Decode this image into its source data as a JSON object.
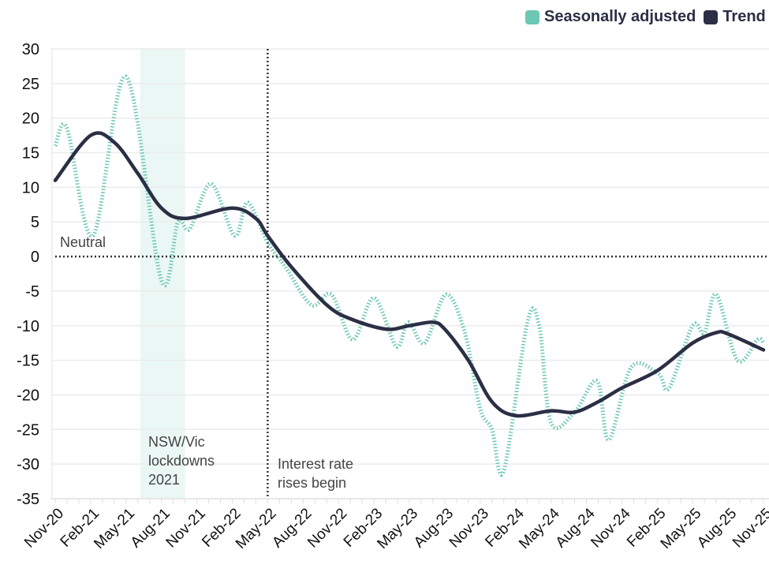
{
  "chart_data": {
    "type": "line",
    "title": "",
    "xlabel": "",
    "ylabel": "",
    "ylim": [
      -35,
      30
    ],
    "yticks": [
      30,
      25,
      20,
      15,
      10,
      5,
      0,
      -5,
      -10,
      -15,
      -20,
      -25,
      -30,
      -35
    ],
    "x_unit": "month index from Nov-20",
    "xlim": [
      0,
      60
    ],
    "xtick_labels": [
      "Nov-20",
      "Feb-21",
      "May-21",
      "Aug-21",
      "Nov-21",
      "Feb-22",
      "May-22",
      "Aug-22",
      "Nov-22",
      "Feb-23",
      "May-23",
      "Aug-23",
      "Nov-23",
      "Feb-24",
      "May-24",
      "Aug-24",
      "Nov-24",
      "Feb-25",
      "May-25",
      "Aug-25",
      "Nov-25"
    ],
    "grid": true,
    "legend": {
      "placement": "top-right",
      "entries": [
        "Seasonally adjusted",
        "Trend"
      ]
    },
    "colors": {
      "seasonally_adjusted": "#6cc7b4",
      "trend": "#2b2f45",
      "band": "#eaf7f4",
      "reference": "#333333"
    },
    "series": [
      {
        "name": "Seasonally adjusted",
        "style": "dotted",
        "points": [
          [
            0,
            16
          ],
          [
            1,
            18.5
          ],
          [
            3.2,
            3
          ],
          [
            6,
            26
          ],
          [
            9,
            -3.5
          ],
          [
            10.4,
            5
          ],
          [
            11.4,
            4
          ],
          [
            13.2,
            10.5
          ],
          [
            15.2,
            3
          ],
          [
            16.3,
            7.8
          ],
          [
            18,
            2
          ],
          [
            19.5,
            -1.5
          ],
          [
            21.7,
            -7
          ],
          [
            23.4,
            -5.5
          ],
          [
            25.2,
            -12
          ],
          [
            27,
            -6
          ],
          [
            28.9,
            -13
          ],
          [
            29.9,
            -9.5
          ],
          [
            31.3,
            -12.5
          ],
          [
            33.1,
            -5.5
          ],
          [
            34.7,
            -11
          ],
          [
            36,
            -22
          ],
          [
            37,
            -25
          ],
          [
            38,
            -31
          ],
          [
            40,
            -9.5
          ],
          [
            41,
            -10
          ],
          [
            42,
            -24
          ],
          [
            44,
            -22.5
          ],
          [
            45.9,
            -18
          ],
          [
            46.9,
            -26.5
          ],
          [
            48.8,
            -16
          ],
          [
            51.1,
            -17
          ],
          [
            52,
            -19
          ],
          [
            54,
            -10
          ],
          [
            55,
            -11
          ],
          [
            56,
            -5.5
          ],
          [
            57.8,
            -15
          ],
          [
            59.5,
            -12
          ],
          [
            60,
            -12.5
          ]
        ]
      },
      {
        "name": "Trend",
        "style": "solid",
        "points": [
          [
            0,
            11
          ],
          [
            3,
            17.5
          ],
          [
            5,
            16.5
          ],
          [
            7,
            12
          ],
          [
            9,
            7
          ],
          [
            11,
            5.5
          ],
          [
            15,
            7
          ],
          [
            17,
            5.5
          ],
          [
            18,
            3
          ],
          [
            20,
            -1.5
          ],
          [
            23,
            -7
          ],
          [
            25,
            -9
          ],
          [
            28,
            -10.5
          ],
          [
            30,
            -10
          ],
          [
            32,
            -9.5
          ],
          [
            33,
            -10.5
          ],
          [
            35,
            -15
          ],
          [
            37,
            -21
          ],
          [
            39,
            -23
          ],
          [
            42,
            -22.3
          ],
          [
            44,
            -22.5
          ],
          [
            46,
            -21
          ],
          [
            48,
            -19
          ],
          [
            51,
            -16.5
          ],
          [
            54,
            -12.5
          ],
          [
            56,
            -11
          ],
          [
            57,
            -11.2
          ],
          [
            60,
            -13.5
          ]
        ]
      }
    ],
    "annotations": [
      {
        "id": "neutral",
        "text": "Neutral",
        "type": "hline",
        "y": 0
      },
      {
        "id": "lockdown",
        "text": [
          "NSW/Vic",
          "lockdowns",
          "2021"
        ],
        "type": "band",
        "x_range": [
          7.2,
          11
        ]
      },
      {
        "id": "rates",
        "text": [
          "Interest rate",
          "rises begin"
        ],
        "type": "vline",
        "x": 18
      }
    ]
  }
}
